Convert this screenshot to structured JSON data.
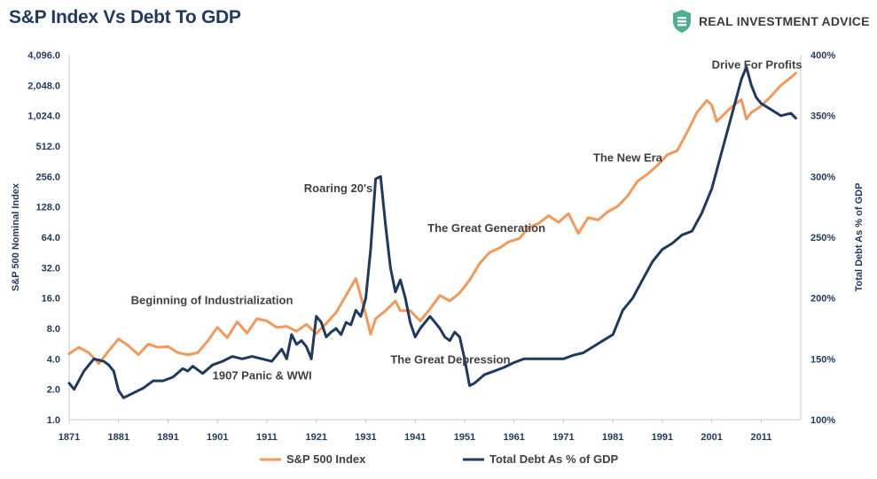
{
  "title": "S&P Index Vs Debt To GDP",
  "brand": {
    "name": "REAL INVESTMENT ADVICE",
    "icon": "shield-dollar-icon",
    "color": "#4caf8f"
  },
  "chart_data": {
    "type": "line",
    "title": "S&P Index Vs Debt To GDP",
    "ylabel": "S&P 500 Nominal Index",
    "y2label": "Total Debt As % of GDP",
    "y_scale": "log2",
    "ylim": [
      1.0,
      4096.0
    ],
    "yticks": [
      "1.0",
      "2.0",
      "4.0",
      "8.0",
      "16.0",
      "32.0",
      "64.0",
      "128.0",
      "256.0",
      "512.0",
      "1,024.0",
      "2,048.0",
      "4,096.0"
    ],
    "y2lim": [
      100,
      400
    ],
    "y2ticks": [
      "100%",
      "150%",
      "200%",
      "250%",
      "300%",
      "350%",
      "400%"
    ],
    "xlim": [
      1871,
      2019
    ],
    "xticks": [
      "1871",
      "1881",
      "1891",
      "1901",
      "1911",
      "1921",
      "1931",
      "1941",
      "1951",
      "1961",
      "1971",
      "1981",
      "1991",
      "2001",
      "2011"
    ],
    "legend_position": "bottom",
    "grid": false,
    "colors": {
      "sp500": "#f2995a",
      "debt": "#1f3a5f",
      "axis_text": "#1f3a5f",
      "annotation": "#404040"
    },
    "series": [
      {
        "name": "S&P 500 Index",
        "axis": "left",
        "x": [
          1871,
          1873,
          1875,
          1877,
          1879,
          1881,
          1883,
          1885,
          1887,
          1889,
          1891,
          1893,
          1895,
          1897,
          1899,
          1901,
          1903,
          1905,
          1907,
          1909,
          1911,
          1913,
          1915,
          1917,
          1919,
          1921,
          1923,
          1925,
          1927,
          1929,
          1931,
          1932,
          1933,
          1935,
          1937,
          1938,
          1940,
          1942,
          1944,
          1946,
          1948,
          1950,
          1952,
          1954,
          1956,
          1958,
          1960,
          1962,
          1964,
          1966,
          1968,
          1970,
          1972,
          1974,
          1976,
          1978,
          1980,
          1982,
          1984,
          1986,
          1988,
          1990,
          1992,
          1994,
          1996,
          1998,
          2000,
          2001,
          2002,
          2003,
          2005,
          2007,
          2008,
          2009,
          2011,
          2013,
          2015,
          2017,
          2018
        ],
        "values": [
          4.5,
          5.2,
          4.6,
          3.6,
          4.8,
          6.3,
          5.4,
          4.4,
          5.6,
          5.2,
          5.3,
          4.6,
          4.4,
          4.6,
          6.0,
          8.2,
          6.5,
          9.3,
          7.2,
          10.0,
          9.5,
          8.2,
          8.4,
          7.5,
          8.8,
          7.1,
          9.0,
          11.5,
          17.0,
          25.0,
          11.0,
          7.0,
          10.0,
          12.0,
          15.0,
          12.0,
          12.0,
          9.5,
          12.5,
          17.0,
          15.0,
          18.0,
          24.0,
          35.0,
          45.0,
          50.0,
          58.0,
          62.0,
          80.0,
          88.0,
          105.0,
          90.0,
          110.0,
          70.0,
          100.0,
          95.0,
          115.0,
          130.0,
          165.0,
          230.0,
          270.0,
          330.0,
          420.0,
          460.0,
          700.0,
          1100.0,
          1450.0,
          1300.0,
          900.0,
          1000.0,
          1250.0,
          1480.0,
          950.0,
          1100.0,
          1280.0,
          1600.0,
          2050.0,
          2450.0,
          2700.0
        ]
      },
      {
        "name": "Total Debt As % of GDP",
        "axis": "right",
        "x": [
          1871,
          1872,
          1874,
          1876,
          1878,
          1879,
          1880,
          1881,
          1882,
          1884,
          1886,
          1888,
          1890,
          1892,
          1894,
          1895,
          1896,
          1898,
          1900,
          1902,
          1904,
          1906,
          1908,
          1910,
          1912,
          1914,
          1915,
          1916,
          1917,
          1918,
          1919,
          1920,
          1921,
          1922,
          1923,
          1924,
          1925,
          1926,
          1927,
          1928,
          1929,
          1930,
          1931,
          1932,
          1933,
          1934,
          1935,
          1936,
          1937,
          1938,
          1939,
          1940,
          1941,
          1942,
          1944,
          1945,
          1946,
          1947,
          1948,
          1949,
          1950,
          1951,
          1952,
          1953,
          1955,
          1957,
          1959,
          1961,
          1963,
          1965,
          1967,
          1969,
          1971,
          1973,
          1975,
          1977,
          1979,
          1981,
          1983,
          1985,
          1987,
          1989,
          1991,
          1993,
          1995,
          1997,
          1999,
          2001,
          2003,
          2005,
          2007,
          2008,
          2009,
          2010,
          2011,
          2013,
          2015,
          2017,
          2018
        ],
        "values": [
          130,
          125,
          140,
          150,
          148,
          145,
          140,
          124,
          118,
          122,
          126,
          132,
          132,
          135,
          142,
          140,
          144,
          138,
          145,
          148,
          152,
          150,
          152,
          150,
          148,
          158,
          150,
          170,
          162,
          165,
          160,
          150,
          185,
          180,
          168,
          172,
          175,
          170,
          180,
          178,
          190,
          185,
          200,
          240,
          298,
          300,
          260,
          225,
          205,
          215,
          200,
          180,
          168,
          175,
          185,
          180,
          175,
          168,
          165,
          172,
          168,
          150,
          128,
          130,
          137,
          140,
          143,
          147,
          150,
          150,
          150,
          150,
          150,
          153,
          155,
          160,
          165,
          170,
          190,
          200,
          215,
          230,
          240,
          245,
          252,
          255,
          270,
          290,
          320,
          350,
          380,
          390,
          375,
          365,
          360,
          355,
          350,
          352,
          348
        ]
      }
    ],
    "annotations": [
      {
        "text": "Drive For Profits",
        "x": 2001,
        "y": 3000
      },
      {
        "text": "Roaring 20's",
        "x": 1918.5,
        "y": 180
      },
      {
        "text": "The New Era",
        "x": 1977,
        "y": 360
      },
      {
        "text": "The Great Generation",
        "x": 1943.5,
        "y": 72
      },
      {
        "text": "Beginning of Industrialization",
        "x": 1883.5,
        "y": 14
      },
      {
        "text": "The Great Depression",
        "x": 1936,
        "y": 3.6
      },
      {
        "text": "1907 Panic & WWI",
        "x": 1900,
        "y": 2.5
      }
    ]
  }
}
